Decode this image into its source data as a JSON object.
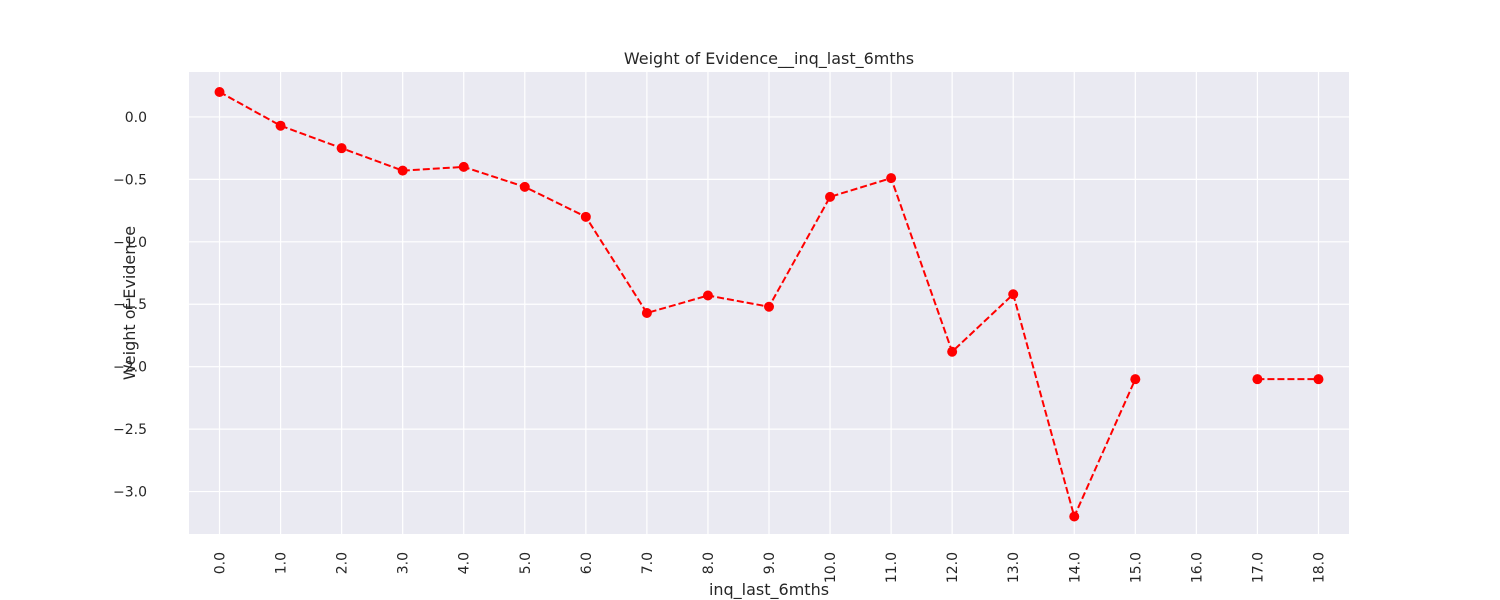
{
  "chart_data": {
    "type": "line",
    "title": "Weight of Evidence__inq_last_6mths",
    "xlabel": "inq_last_6mths",
    "ylabel": "Weight of Evidence",
    "categories": [
      "0.0",
      "1.0",
      "2.0",
      "3.0",
      "4.0",
      "5.0",
      "6.0",
      "7.0",
      "8.0",
      "9.0",
      "10.0",
      "11.0",
      "12.0",
      "13.0",
      "14.0",
      "15.0",
      "16.0",
      "17.0",
      "18.0"
    ],
    "series": [
      {
        "values": [
          0.2,
          -0.07,
          -0.25,
          -0.43,
          -0.4,
          -0.56,
          -0.8,
          -1.57,
          -1.43,
          -1.52,
          -0.64,
          -0.49,
          -1.88,
          -1.42,
          -3.2,
          -2.1,
          null,
          -2.1,
          -2.1
        ],
        "color": "#ff0000",
        "line_style": "dashed",
        "marker": "circle"
      }
    ],
    "yticks": [
      "0.0",
      "-0.5",
      "-1.0",
      "-1.5",
      "-2.0",
      "-2.5",
      "-3.0"
    ],
    "ytick_values": [
      0.0,
      -0.5,
      -1.0,
      -1.5,
      -2.0,
      -2.5,
      -3.0
    ],
    "ylim": [
      -3.34,
      0.36
    ],
    "grid": true,
    "background_color": "#eaeaf2",
    "grid_color": "#ffffff",
    "legend": "none"
  }
}
